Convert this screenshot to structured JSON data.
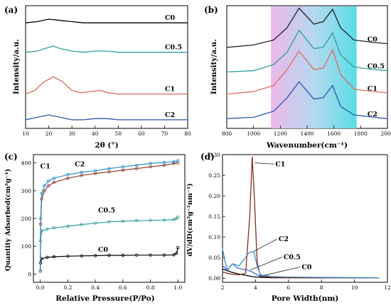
{
  "chart_data": [
    {
      "type": "line",
      "panel_label": "(a)",
      "xlabel": "2θ (°)",
      "ylabel": "Intensity/a.u.",
      "xlim": [
        10,
        80
      ],
      "xticks": [
        "10",
        "20",
        "30",
        "40",
        "50",
        "60",
        "70",
        "80"
      ],
      "series": [
        {
          "name": "C0",
          "color": "#000000",
          "x": [
            10,
            15,
            20,
            25,
            30,
            35,
            40,
            45,
            50,
            60,
            70,
            80
          ],
          "y": [
            0.86,
            0.87,
            0.89,
            0.88,
            0.87,
            0.86,
            0.86,
            0.86,
            0.86,
            0.86,
            0.86,
            0.86
          ]
        },
        {
          "name": "C0.5",
          "color": "#2e9f9c",
          "x": [
            10,
            15,
            20,
            22,
            25,
            30,
            35,
            40,
            45,
            50,
            60,
            70,
            80
          ],
          "y": [
            0.62,
            0.63,
            0.66,
            0.67,
            0.65,
            0.63,
            0.62,
            0.63,
            0.63,
            0.62,
            0.62,
            0.62,
            0.62
          ]
        },
        {
          "name": "C1",
          "color": "#e06a5a",
          "x": [
            10,
            14,
            18,
            22,
            26,
            30,
            34,
            38,
            42,
            46,
            50,
            60,
            70,
            80
          ],
          "y": [
            0.28,
            0.31,
            0.38,
            0.42,
            0.38,
            0.31,
            0.29,
            0.3,
            0.31,
            0.29,
            0.28,
            0.28,
            0.28,
            0.28
          ]
        },
        {
          "name": "C2",
          "color": "#2a56b0",
          "x": [
            10,
            15,
            20,
            25,
            30,
            35,
            40,
            45,
            50,
            60,
            70,
            80
          ],
          "y": [
            0.07,
            0.09,
            0.11,
            0.09,
            0.07,
            0.07,
            0.08,
            0.08,
            0.07,
            0.07,
            0.07,
            0.07
          ]
        }
      ]
    },
    {
      "type": "line",
      "panel_label": "(b)",
      "xlabel": "Wavenumber(cm⁻¹)",
      "ylabel": "Intensity/a.u.",
      "xlim": [
        800,
        2000
      ],
      "xticks": [
        "800",
        "1000",
        "1200",
        "1400",
        "1600",
        "1800",
        "2000"
      ],
      "shaded_region": [
        1130,
        1770
      ],
      "series": [
        {
          "name": "C0",
          "color": "#222222",
          "x": [
            800,
            1000,
            1150,
            1250,
            1340,
            1450,
            1520,
            1590,
            1650,
            1750,
            1900,
            2000
          ],
          "y": [
            0.66,
            0.68,
            0.72,
            0.82,
            0.98,
            0.85,
            0.87,
            0.97,
            0.82,
            0.72,
            0.7,
            0.69
          ]
        },
        {
          "name": "C0.5",
          "color": "#2e9f9c",
          "x": [
            800,
            1000,
            1150,
            1250,
            1340,
            1450,
            1520,
            1590,
            1650,
            1750,
            1900,
            2000
          ],
          "y": [
            0.46,
            0.47,
            0.52,
            0.62,
            0.8,
            0.65,
            0.66,
            0.78,
            0.6,
            0.5,
            0.48,
            0.47
          ]
        },
        {
          "name": "C1",
          "color": "#e06a5a",
          "x": [
            800,
            1000,
            1150,
            1250,
            1340,
            1450,
            1520,
            1590,
            1650,
            1750,
            1900,
            2000
          ],
          "y": [
            0.28,
            0.3,
            0.35,
            0.48,
            0.63,
            0.48,
            0.49,
            0.64,
            0.44,
            0.32,
            0.3,
            0.29
          ]
        },
        {
          "name": "C2",
          "color": "#2a56b0",
          "x": [
            800,
            1000,
            1150,
            1250,
            1340,
            1450,
            1520,
            1590,
            1650,
            1750,
            1900,
            2000
          ],
          "y": [
            0.08,
            0.09,
            0.14,
            0.25,
            0.38,
            0.24,
            0.25,
            0.35,
            0.18,
            0.11,
            0.09,
            0.08
          ]
        }
      ]
    },
    {
      "type": "line",
      "panel_label": "(c)",
      "xlabel": "Relative Pressure(P/Po)",
      "ylabel": "Quantity Adsorbed(cm³g⁻¹)",
      "xlim": [
        -0.05,
        1.05
      ],
      "ylim": [
        -30,
        430
      ],
      "xticks": [
        0.0,
        0.2,
        0.4,
        0.6,
        0.8,
        1.0
      ],
      "yticks": [
        0,
        100,
        200,
        300,
        400
      ],
      "series": [
        {
          "name": "C0",
          "color": "#000000",
          "x": [
            0,
            0.002,
            0.01,
            0.05,
            0.1,
            0.2,
            0.3,
            0.4,
            0.5,
            0.6,
            0.7,
            0.8,
            0.9,
            0.97,
            0.99,
            1.0
          ],
          "y": [
            10,
            40,
            55,
            60,
            62,
            64,
            65,
            66,
            67,
            67,
            68,
            68,
            68,
            69,
            75,
            95
          ]
        },
        {
          "name": "C0.5",
          "color": "#2e9f9c",
          "x": [
            0,
            0.002,
            0.01,
            0.05,
            0.1,
            0.2,
            0.3,
            0.4,
            0.5,
            0.6,
            0.7,
            0.8,
            0.9,
            0.97,
            0.99,
            1.0
          ],
          "y": [
            10,
            120,
            155,
            162,
            166,
            172,
            178,
            183,
            188,
            190,
            192,
            193,
            194,
            196,
            200,
            205
          ]
        },
        {
          "name": "C1",
          "color": "#8a3c2c",
          "x": [
            0,
            0.002,
            0.01,
            0.03,
            0.06,
            0.1,
            0.2,
            0.3,
            0.4,
            0.5,
            0.6,
            0.7,
            0.8,
            0.9,
            0.97,
            1.0
          ],
          "y": [
            10,
            180,
            270,
            300,
            318,
            330,
            345,
            355,
            362,
            368,
            374,
            380,
            386,
            392,
            398,
            400
          ]
        },
        {
          "name": "C2",
          "color": "#2a8fc9",
          "x": [
            0,
            0.002,
            0.01,
            0.03,
            0.06,
            0.1,
            0.2,
            0.3,
            0.4,
            0.5,
            0.6,
            0.7,
            0.8,
            0.9,
            0.97,
            1.0
          ],
          "y": [
            10,
            200,
            290,
            318,
            335,
            345,
            358,
            366,
            372,
            380,
            386,
            392,
            398,
            402,
            405,
            408
          ]
        }
      ]
    },
    {
      "type": "line",
      "panel_label": "(d)",
      "xlabel": "Pore Width(nm)",
      "ylabel": "dV/dD(cm³g⁻¹nm⁻¹)",
      "xlim": [
        2,
        12
      ],
      "ylim": [
        -0.01,
        0.3
      ],
      "xticks": [
        2,
        4,
        6,
        8,
        10,
        12
      ],
      "yticks": [
        "0.00",
        "0.05",
        "0.10",
        "0.15",
        "0.20",
        "0.25",
        "0.30"
      ],
      "series": [
        {
          "name": "C0",
          "color": "#000000",
          "x": [
            2,
            2.3,
            2.6,
            3,
            3.4,
            3.8,
            4.2,
            5,
            6,
            8,
            11.5
          ],
          "y": [
            0.022,
            0.018,
            0.014,
            0.01,
            0.007,
            0.004,
            0.002,
            0.001,
            0.001,
            0.001,
            0.001
          ]
        },
        {
          "name": "C0.5",
          "color": "#3c6fd0",
          "x": [
            2,
            2.3,
            2.6,
            2.9,
            3.2,
            3.5,
            3.8,
            4.2,
            5,
            6,
            8,
            11.5
          ],
          "y": [
            0.03,
            0.02,
            0.035,
            0.025,
            0.022,
            0.02,
            0.015,
            0.006,
            0.003,
            0.002,
            0.001,
            0.001
          ]
        },
        {
          "name": "C1",
          "color": "#8a2c1e",
          "x": [
            2,
            2.5,
            3,
            3.4,
            3.65,
            3.8,
            3.95,
            4.1,
            4.3,
            5,
            6,
            8,
            11.5
          ],
          "y": [
            0.015,
            0.01,
            0.008,
            0.012,
            0.15,
            0.295,
            0.18,
            0.04,
            0.004,
            0.002,
            0.001,
            0.001,
            0.001
          ]
        },
        {
          "name": "C2",
          "color": "#3a8fc9",
          "x": [
            2,
            2.15,
            2.3,
            2.6,
            3,
            3.3,
            3.6,
            3.9,
            4.1,
            4.3,
            5,
            6,
            8,
            11.5
          ],
          "y": [
            0.072,
            0.04,
            0.02,
            0.035,
            0.03,
            0.045,
            0.062,
            0.065,
            0.03,
            0.008,
            0.004,
            0.003,
            0.002,
            0.001
          ]
        }
      ]
    }
  ]
}
